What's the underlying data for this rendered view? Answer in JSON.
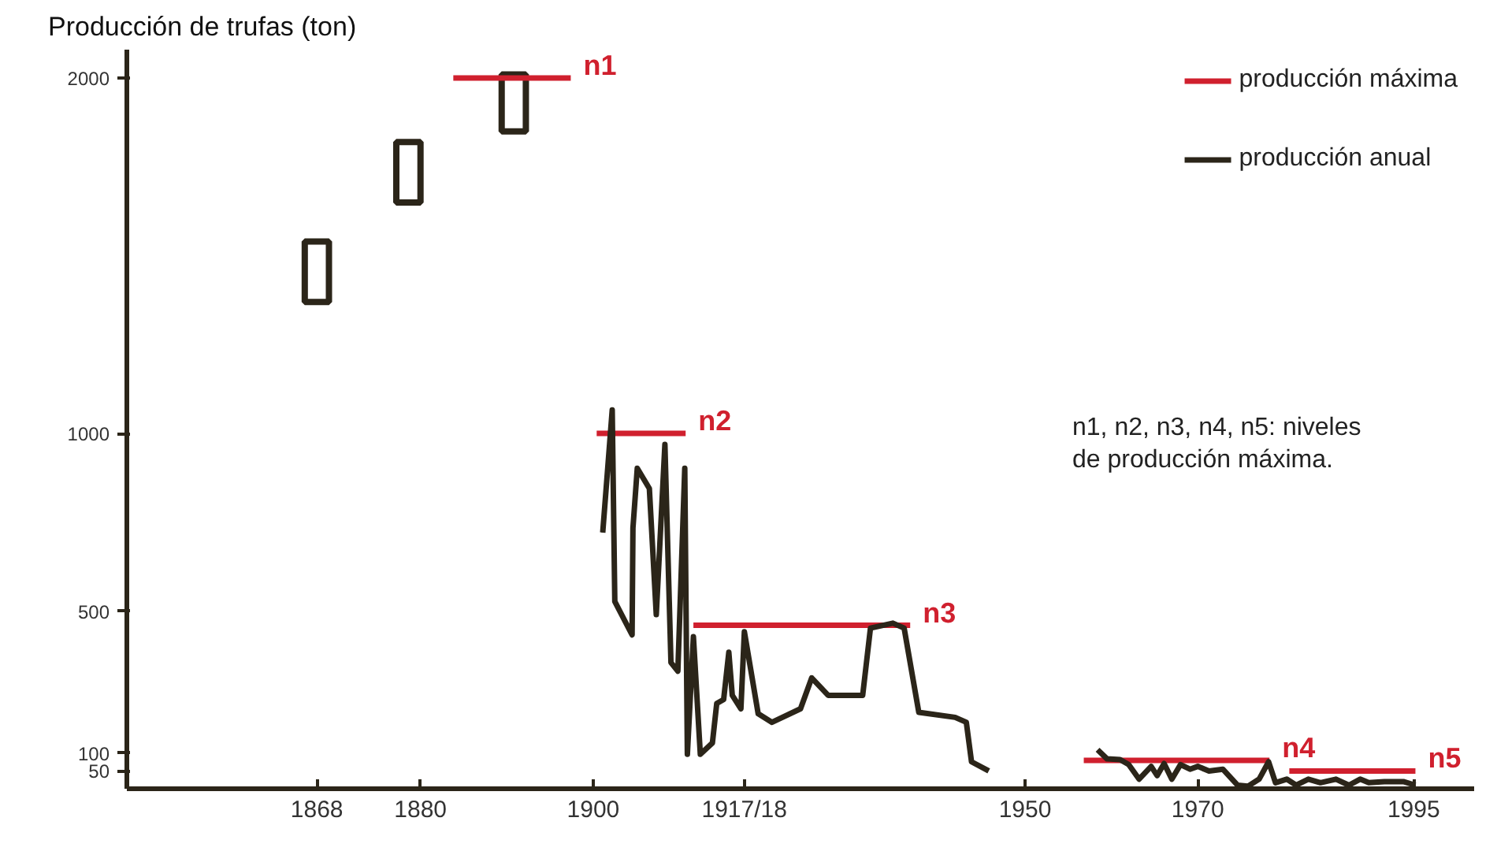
{
  "chart_data": {
    "type": "line",
    "ylabel": "Producción de trufas (ton)",
    "xlim": [
      1846,
      2002
    ],
    "xticks": [
      1868,
      1880,
      1900,
      {
        "value": 1917.5,
        "label": "1917/18"
      },
      1950,
      1970,
      1995
    ],
    "ylim": [
      0,
      2080
    ],
    "yticks": [
      50,
      100,
      500,
      1000,
      2000
    ],
    "grid": false,
    "legend": "top right",
    "series": [
      {
        "type": "bar",
        "color": "#2b2519",
        "x": [
          1868,
          1878.6,
          1890.8
        ],
        "base": [
          1370,
          1650,
          1850
        ],
        "values": [
          170,
          170,
          160
        ]
      },
      {
        "name": "producción máxima",
        "color": "#d0202e",
        "x": [
          1883.8,
          1897.4,
          1899,
          1900.4,
          1910.7,
          1911,
          1911.6,
          1936.7,
          1945,
          1956.8,
          1978.3,
          1979,
          1980.6,
          1995.2
        ],
        "values": [
          2000,
          2000,
          null,
          1000,
          1000,
          null,
          460,
          460,
          null,
          80,
          80,
          null,
          50,
          50
        ]
      },
      {
        "name": "producción anual",
        "color": "#2b2519",
        "x": [
          1901.1,
          1902.2,
          1902.5,
          1904.5,
          1904.6,
          1905.1,
          1906.5,
          1907.3,
          1908.3,
          1909.0,
          1909.8,
          1910.6,
          1910.9,
          1911.6,
          1912.4,
          1913.8,
          1914.3,
          1915.1,
          1915.7,
          1916.1,
          1917.1,
          1917.5,
          1919.1,
          1920.7,
          1924.0,
          1925.3,
          1927.2,
          1931.2,
          1932.1,
          1934.7,
          1936.0,
          1937.7,
          1941.9,
          1943.2,
          1943.8,
          1945.8,
          1950,
          1958.4,
          1959.5,
          1961,
          1962,
          1963.2,
          1964.6,
          1965.3,
          1966.1,
          1967,
          1968,
          1969.1,
          1970,
          1971.3,
          1972.9,
          1974.6,
          1975.8,
          1977.1,
          1978.2,
          1979,
          1980.3,
          1981.4,
          1982.8,
          1984.2,
          1986,
          1987.5,
          1988.8,
          1989.8,
          1991.6,
          1993.8,
          1995.2
        ],
        "values": [
          721,
          1066,
          527,
          433,
          734,
          902,
          845,
          490,
          969,
          355,
          331,
          902,
          97,
          428,
          97,
          129,
          240,
          251,
          384,
          263,
          225,
          442,
          211,
          187,
          225,
          312,
          263,
          263,
          452,
          466,
          452,
          215,
          201,
          187,
          76,
          50,
          null,
          110,
          84,
          82,
          68,
          27,
          63,
          37,
          71,
          27,
          68,
          55,
          63,
          50,
          55,
          10,
          7,
          27,
          76,
          17,
          27,
          10,
          27,
          17,
          27,
          10,
          27,
          17,
          20,
          20,
          10
        ]
      }
    ],
    "annotations": [
      {
        "text": "n1",
        "x": 1897.4,
        "y": 2000
      },
      {
        "text": "n2",
        "x": 1910.7,
        "y": 1000
      },
      {
        "text": "n3",
        "x": 1936.7,
        "y": 460
      },
      {
        "text": "n4",
        "x": 1978.3,
        "y": 80
      },
      {
        "text": "n5",
        "x": 1995.2,
        "y": 50
      },
      "n1, n2, n3, n4, n5: niveles\nde producción máxima."
    ]
  }
}
